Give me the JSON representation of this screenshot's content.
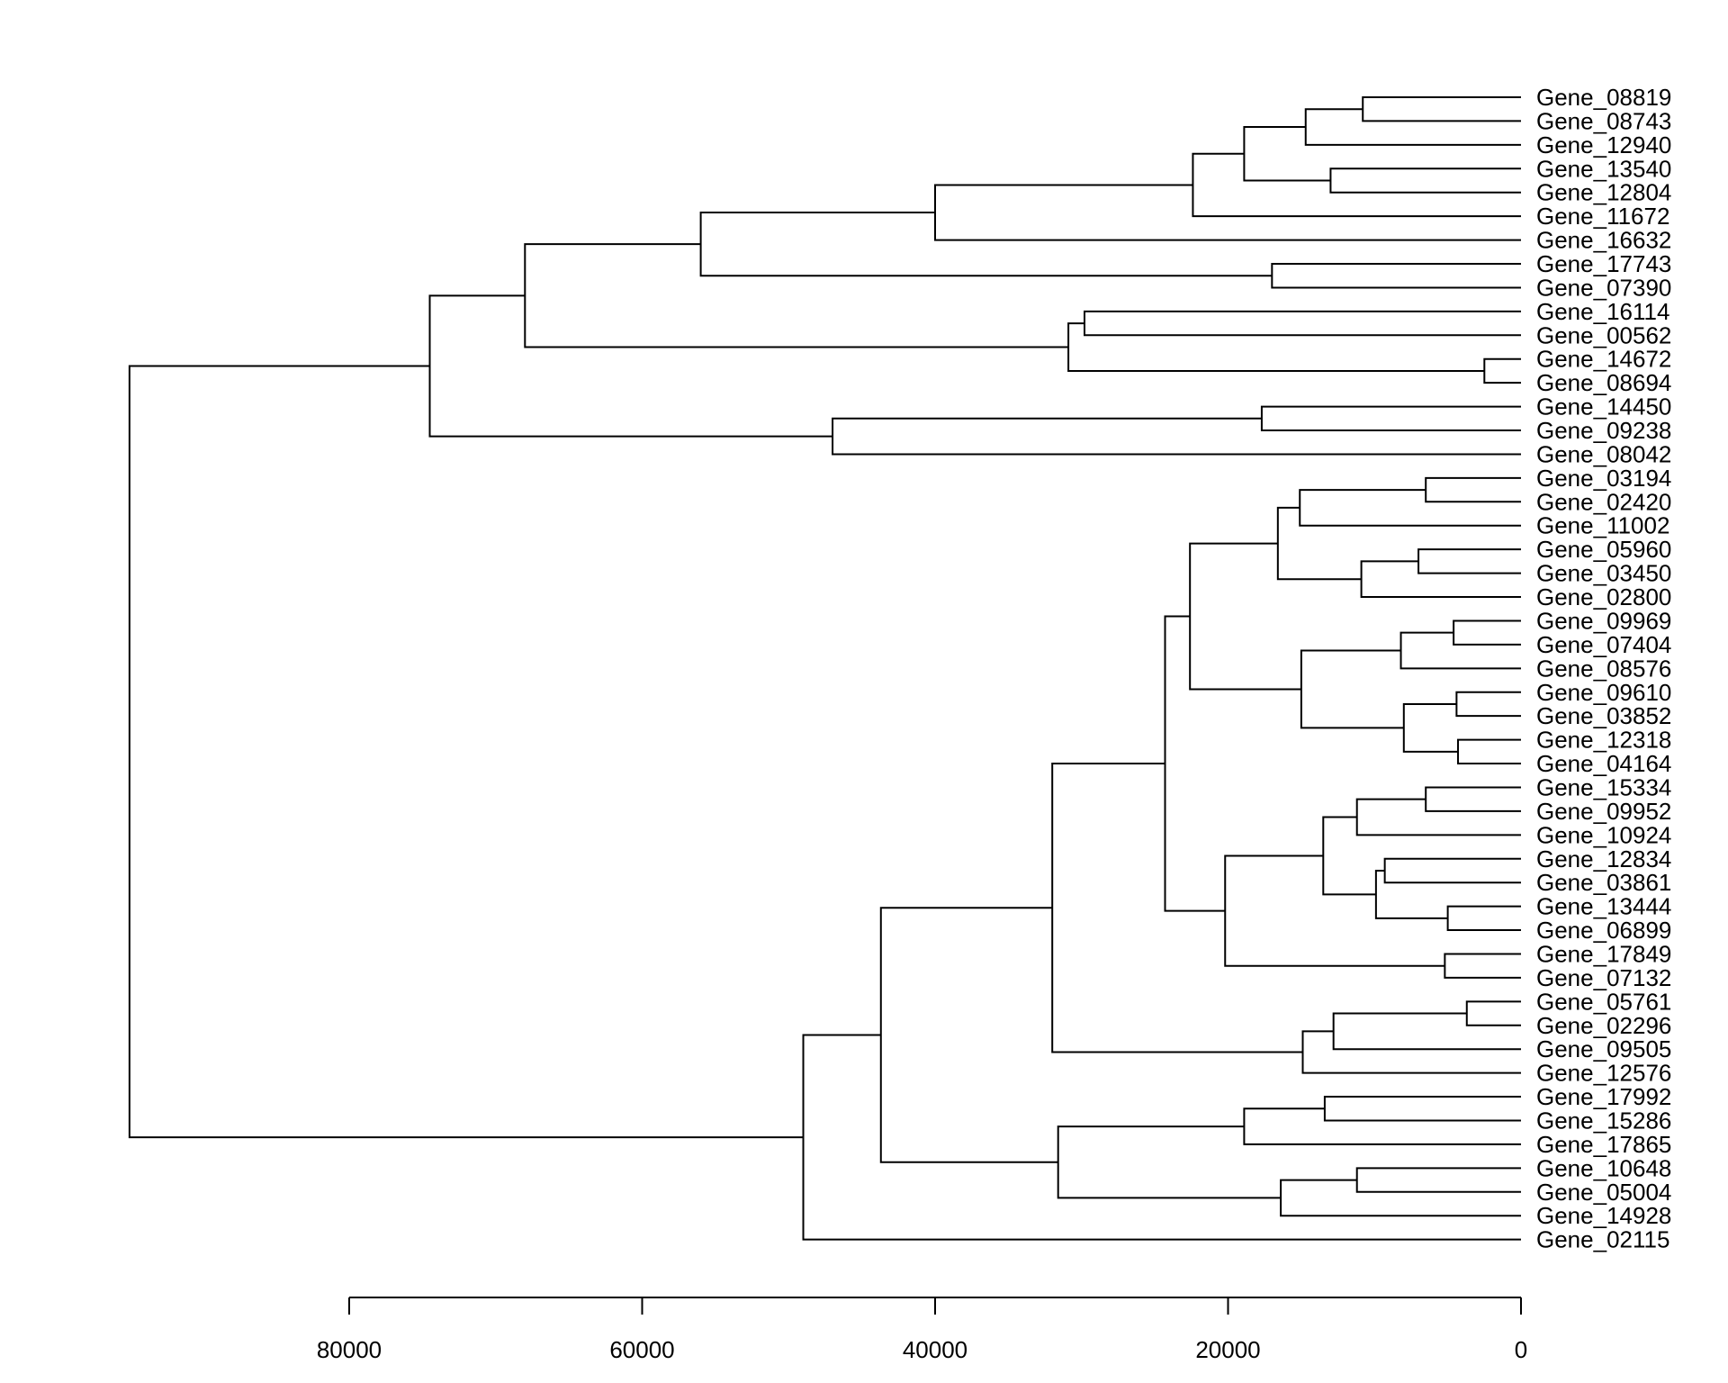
{
  "chart_data": {
    "type": "dendrogram",
    "orientation": "horizontal",
    "title": "",
    "xlabel": "",
    "ylabel": "",
    "xlim": [
      0,
      80000
    ],
    "x_ticks": [
      80000,
      60000,
      40000,
      20000,
      0
    ],
    "x_tick_labels": [
      "80000",
      "60000",
      "40000",
      "20000",
      "0"
    ],
    "leaves": [
      "Gene_08819",
      "Gene_08743",
      "Gene_12940",
      "Gene_13540",
      "Gene_12804",
      "Gene_11672",
      "Gene_16632",
      "Gene_17743",
      "Gene_07390",
      "Gene_16114",
      "Gene_00562",
      "Gene_14672",
      "Gene_08694",
      "Gene_14450",
      "Gene_09238",
      "Gene_08042",
      "Gene_03194",
      "Gene_02420",
      "Gene_11002",
      "Gene_05960",
      "Gene_03450",
      "Gene_02800",
      "Gene_09969",
      "Gene_07404",
      "Gene_08576",
      "Gene_09610",
      "Gene_03852",
      "Gene_12318",
      "Gene_04164",
      "Gene_15334",
      "Gene_09952",
      "Gene_10924",
      "Gene_12834",
      "Gene_03861",
      "Gene_13444",
      "Gene_06899",
      "Gene_17849",
      "Gene_07132",
      "Gene_05761",
      "Gene_02296",
      "Gene_09505",
      "Gene_12576",
      "Gene_17992",
      "Gene_15286",
      "Gene_17865",
      "Gene_10648",
      "Gene_05004",
      "Gene_14928",
      "Gene_02115"
    ],
    "tree": [
      [
        [
          [
            [
              [
                [
                  [
                    "Gene_08819",
                    "Gene_08743",
                    10800
                  ],
                  "Gene_12940",
                  14700
                ],
                [
                  [
                    "Gene_13540",
                    "Gene_12804",
                    13000
                  ]
                ],
                18900
              ],
              "Gene_11672",
              22400
            ],
            "Gene_16632",
            40000
          ],
          [
            "Gene_17743",
            "Gene_07390",
            17000
          ],
          56000
        ],
        [
          [
            "Gene_16114",
            "Gene_00562",
            29800
          ],
          [
            "Gene_14672",
            "Gene_08694",
            2500
          ],
          30900
        ],
        68000
      ],
      [
        [
          "Gene_14450",
          "Gene_09238",
          17700
        ],
        "Gene_08042",
        47000
      ],
      74500
    ],
    "merges": [
      {
        "a": "Gene_08819",
        "b": "Gene_08743",
        "h": 10800,
        "id": "n1"
      },
      {
        "a": "n1",
        "b": "Gene_12940",
        "h": 14700,
        "id": "n2"
      },
      {
        "a": "Gene_13540",
        "b": "Gene_12804",
        "h": 13000,
        "id": "n3"
      },
      {
        "a": "n2",
        "b": "n3",
        "h": 18900,
        "id": "n4"
      },
      {
        "a": "n4",
        "b": "Gene_11672",
        "h": 22400,
        "id": "n5"
      },
      {
        "a": "n5",
        "b": "Gene_16632",
        "h": 40000,
        "id": "n6"
      },
      {
        "a": "Gene_17743",
        "b": "Gene_07390",
        "h": 17000,
        "id": "n7"
      },
      {
        "a": "n6",
        "b": "n7",
        "h": 56000,
        "id": "n8"
      },
      {
        "a": "Gene_16114",
        "b": "Gene_00562",
        "h": 29800,
        "id": "n9"
      },
      {
        "a": "Gene_14672",
        "b": "Gene_08694",
        "h": 2500,
        "id": "n10"
      },
      {
        "a": "n9",
        "b": "n10",
        "h": 30900,
        "id": "n11"
      },
      {
        "a": "n8",
        "b": "n11",
        "h": 68000,
        "id": "n12"
      },
      {
        "a": "Gene_14450",
        "b": "Gene_09238",
        "h": 17700,
        "id": "n13"
      },
      {
        "a": "n13",
        "b": "Gene_08042",
        "h": 47000,
        "id": "n14"
      },
      {
        "a": "n12",
        "b": "n14",
        "h": 74500,
        "id": "n15"
      },
      {
        "a": "Gene_03194",
        "b": "Gene_02420",
        "h": 6500,
        "id": "m1"
      },
      {
        "a": "m1",
        "b": "Gene_11002",
        "h": 15100,
        "id": "m2"
      },
      {
        "a": "Gene_05960",
        "b": "Gene_03450",
        "h": 7000,
        "id": "m3"
      },
      {
        "a": "m3",
        "b": "Gene_02800",
        "h": 10900,
        "id": "m4"
      },
      {
        "a": "m2",
        "b": "m4",
        "h": 16600,
        "id": "m5"
      },
      {
        "a": "Gene_09969",
        "b": "Gene_07404",
        "h": 4600,
        "id": "m6"
      },
      {
        "a": "m6",
        "b": "Gene_08576",
        "h": 8200,
        "id": "m7"
      },
      {
        "a": "Gene_09610",
        "b": "Gene_03852",
        "h": 4400,
        "id": "m8"
      },
      {
        "a": "Gene_12318",
        "b": "Gene_04164",
        "h": 4300,
        "id": "m9"
      },
      {
        "a": "m8",
        "b": "m9",
        "h": 8000,
        "id": "m10"
      },
      {
        "a": "m7",
        "b": "m10",
        "h": 15000,
        "id": "m11"
      },
      {
        "a": "m5",
        "b": "m11",
        "h": 22600,
        "id": "m12"
      },
      {
        "a": "Gene_15334",
        "b": "Gene_09952",
        "h": 6500,
        "id": "m13"
      },
      {
        "a": "m13",
        "b": "Gene_10924",
        "h": 11200,
        "id": "m14"
      },
      {
        "a": "Gene_12834",
        "b": "Gene_03861",
        "h": 9300,
        "id": "m15"
      },
      {
        "a": "Gene_13444",
        "b": "Gene_06899",
        "h": 5000,
        "id": "m16"
      },
      {
        "a": "m15",
        "b": "m16",
        "h": 9900,
        "id": "m17"
      },
      {
        "a": "m14",
        "b": "m17",
        "h": 13500,
        "id": "m18"
      },
      {
        "a": "Gene_17849",
        "b": "Gene_07132",
        "h": 5200,
        "id": "m19"
      },
      {
        "a": "m18",
        "b": "m19",
        "h": 20200,
        "id": "m20"
      },
      {
        "a": "m12",
        "b": "m20",
        "h": 24300,
        "id": "m21"
      },
      {
        "a": "Gene_05761",
        "b": "Gene_02296",
        "h": 3700,
        "id": "m22"
      },
      {
        "a": "m22",
        "b": "Gene_09505",
        "h": 12800,
        "id": "m23"
      },
      {
        "a": "m23",
        "b": "Gene_12576",
        "h": 14900,
        "id": "m24"
      },
      {
        "a": "m21",
        "b": "m24",
        "h": 32000,
        "id": "m25"
      },
      {
        "a": "Gene_17992",
        "b": "Gene_15286",
        "h": 13400,
        "id": "m26"
      },
      {
        "a": "m26",
        "b": "Gene_17865",
        "h": 18900,
        "id": "m27"
      },
      {
        "a": "Gene_10648",
        "b": "Gene_05004",
        "h": 11200,
        "id": "m28"
      },
      {
        "a": "m28",
        "b": "Gene_14928",
        "h": 16400,
        "id": "m29"
      },
      {
        "a": "m27",
        "b": "m29",
        "h": 31600,
        "id": "m30"
      },
      {
        "a": "m25",
        "b": "m30",
        "h": 43700,
        "id": "m31"
      },
      {
        "a": "m31",
        "b": "Gene_02115",
        "h": 49000,
        "id": "m32"
      },
      {
        "a": "n15",
        "b": "m32",
        "h": 95000,
        "id": "root"
      }
    ]
  }
}
